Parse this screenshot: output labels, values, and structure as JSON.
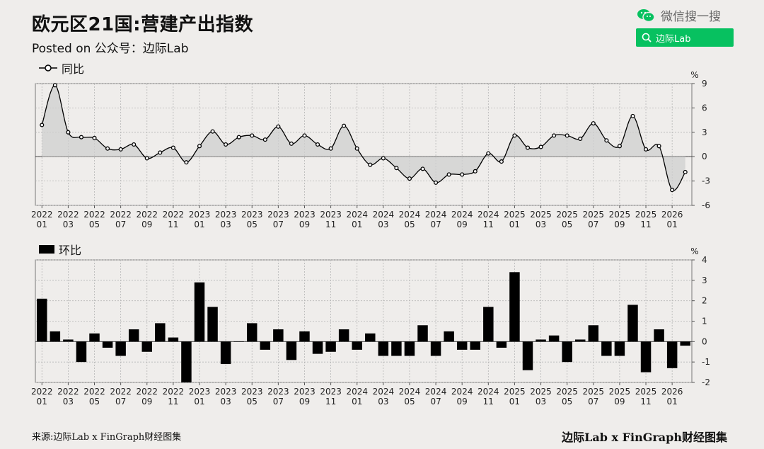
{
  "header": {
    "title": "欧元区21国:营建产出指数",
    "subtitle": "Posted on 公众号：边际Lab"
  },
  "wechat": {
    "label": "微信搜一搜",
    "search_text": "边际Lab",
    "color": "#07c160"
  },
  "footer": {
    "source": "来源:边际Lab x FinGraph财经图集",
    "brand": "边际Lab x FinGraph财经图集"
  },
  "chart_data": [
    {
      "type": "area",
      "legend": "同比",
      "unit": "%",
      "ylim": [
        -6,
        9
      ],
      "yticks": [
        9,
        6,
        3,
        0,
        -3,
        -6
      ],
      "x": [
        "2022-01",
        "2022-02",
        "2022-03",
        "2022-04",
        "2022-05",
        "2022-06",
        "2022-07",
        "2022-08",
        "2022-09",
        "2022-10",
        "2022-11",
        "2022-12",
        "2023-01",
        "2023-02",
        "2023-03",
        "2023-04",
        "2023-05",
        "2023-06",
        "2023-07",
        "2023-08",
        "2023-09",
        "2023-10",
        "2023-11",
        "2023-12",
        "2024-01",
        "2024-02",
        "2024-03",
        "2024-04",
        "2024-05",
        "2024-06",
        "2024-07",
        "2024-08",
        "2024-09",
        "2024-10",
        "2024-11",
        "2024-12",
        "2025-01",
        "2025-02",
        "2025-03",
        "2025-04",
        "2025-05",
        "2025-06",
        "2025-07",
        "2025-08",
        "2025-09",
        "2025-10",
        "2025-11",
        "2025-12",
        "2026-01",
        "2026-02"
      ],
      "values": [
        3.9,
        8.8,
        3.0,
        2.4,
        2.3,
        1.0,
        0.9,
        1.5,
        -0.2,
        0.5,
        1.1,
        -0.7,
        1.3,
        3.1,
        1.5,
        2.4,
        2.6,
        2.1,
        3.7,
        1.6,
        2.6,
        1.5,
        1.0,
        3.8,
        1.0,
        -1.0,
        -0.2,
        -1.4,
        -2.7,
        -1.5,
        -3.2,
        -2.2,
        -2.2,
        -1.8,
        0.4,
        -0.6,
        2.6,
        1.1,
        1.2,
        2.6,
        2.6,
        2.2,
        4.1,
        2.0,
        1.3,
        5.0,
        0.9,
        1.3,
        -4.1,
        -1.9
      ],
      "xtick_years": [
        "2022",
        "2022",
        "2022",
        "2022",
        "2022",
        "2022",
        "2023",
        "2023",
        "2023",
        "2023",
        "2023",
        "2023",
        "2024",
        "2024",
        "2024",
        "2024",
        "2024",
        "2024",
        "2025",
        "2025",
        "2025",
        "2025",
        "2025",
        "2025",
        "2026"
      ],
      "xtick_months": [
        "01",
        "03",
        "05",
        "07",
        "09",
        "11",
        "01",
        "03",
        "05",
        "07",
        "09",
        "11",
        "01",
        "03",
        "05",
        "07",
        "09",
        "11",
        "01",
        "03",
        "05",
        "07",
        "09",
        "11",
        "01"
      ],
      "grid": true
    },
    {
      "type": "bar",
      "legend": "环比",
      "unit": "%",
      "ylim": [
        -2,
        4
      ],
      "yticks": [
        4,
        3,
        2,
        1,
        0,
        -1,
        -2
      ],
      "x": [
        "2022-01",
        "2022-02",
        "2022-03",
        "2022-04",
        "2022-05",
        "2022-06",
        "2022-07",
        "2022-08",
        "2022-09",
        "2022-10",
        "2022-11",
        "2022-12",
        "2023-01",
        "2023-02",
        "2023-03",
        "2023-04",
        "2023-05",
        "2023-06",
        "2023-07",
        "2023-08",
        "2023-09",
        "2023-10",
        "2023-11",
        "2023-12",
        "2024-01",
        "2024-02",
        "2024-03",
        "2024-04",
        "2024-05",
        "2024-06",
        "2024-07",
        "2024-08",
        "2024-09",
        "2024-10",
        "2024-11",
        "2024-12",
        "2025-01",
        "2025-02",
        "2025-03",
        "2025-04",
        "2025-05",
        "2025-06",
        "2025-07",
        "2025-08",
        "2025-09",
        "2025-10",
        "2025-11",
        "2025-12",
        "2026-01",
        "2026-02"
      ],
      "values": [
        2.1,
        0.5,
        0.1,
        -1.0,
        0.4,
        -0.3,
        -0.7,
        0.6,
        -0.5,
        0.9,
        0.2,
        -2.0,
        2.9,
        1.7,
        -1.1,
        0.0,
        0.9,
        -0.4,
        0.6,
        -0.9,
        0.5,
        -0.6,
        -0.5,
        0.6,
        -0.4,
        0.4,
        -0.7,
        -0.7,
        -0.7,
        0.8,
        -0.7,
        0.5,
        -0.4,
        -0.4,
        1.7,
        -0.3,
        3.4,
        -1.4,
        0.1,
        0.3,
        -1.0,
        0.1,
        0.8,
        -0.7,
        -0.7,
        1.8,
        -1.5,
        0.6,
        -1.3,
        -0.2
      ],
      "xtick_years": [
        "2022",
        "2022",
        "2022",
        "2022",
        "2022",
        "2022",
        "2023",
        "2023",
        "2023",
        "2023",
        "2023",
        "2023",
        "2024",
        "2024",
        "2024",
        "2024",
        "2024",
        "2024",
        "2025",
        "2025",
        "2025",
        "2025",
        "2025",
        "2025",
        "2026"
      ],
      "xtick_months": [
        "01",
        "03",
        "05",
        "07",
        "09",
        "11",
        "01",
        "03",
        "05",
        "07",
        "09",
        "11",
        "01",
        "03",
        "05",
        "07",
        "09",
        "11",
        "01",
        "03",
        "05",
        "07",
        "09",
        "11",
        "01"
      ],
      "grid": true
    }
  ]
}
